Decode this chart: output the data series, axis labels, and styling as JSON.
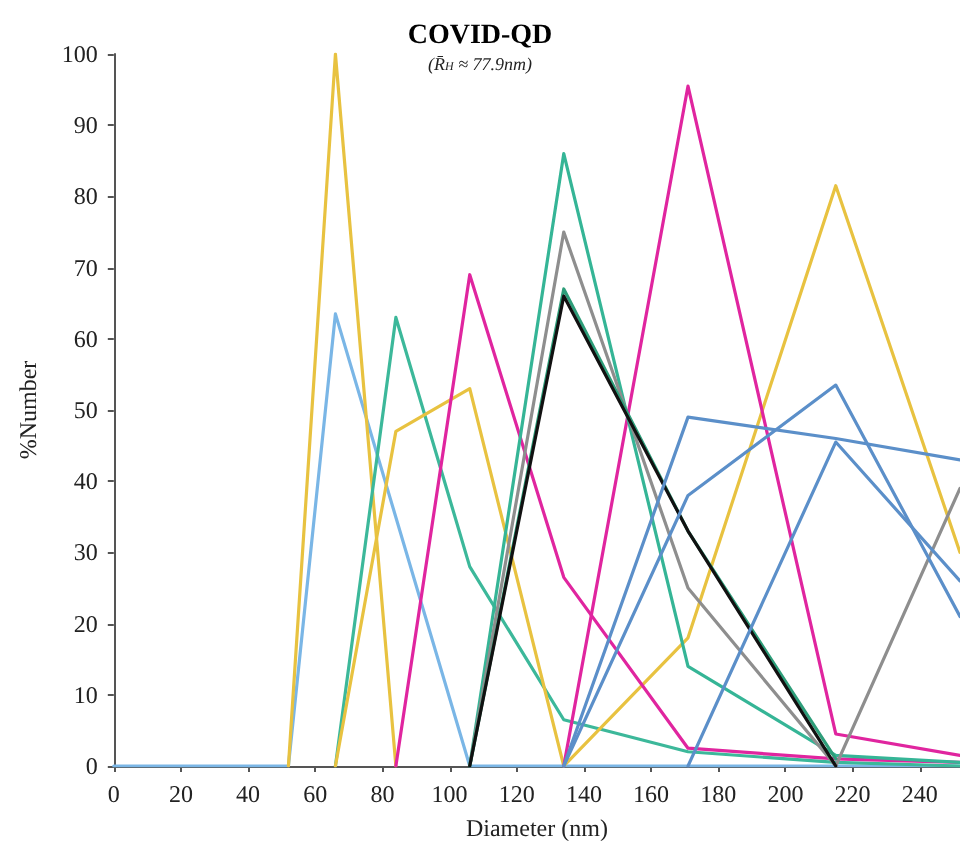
{
  "chart_data": {
    "type": "line",
    "title": "COVID-QD",
    "subtitle": "(R̄$_{H}$ ≈ 77.9nm)",
    "xlabel": "Diameter (nm)",
    "ylabel": "%Number",
    "series": [
      {
        "color": "#7ab6e6",
        "x": [
          0,
          52,
          66,
          106,
          134,
          171,
          215,
          252
        ],
        "values": [
          0,
          0,
          63.5,
          0,
          0,
          0,
          0,
          0
        ]
      },
      {
        "color": "#e8c240",
        "x": [
          52,
          66,
          84
        ],
        "values": [
          0,
          100,
          0
        ]
      },
      {
        "color": "#3cb89a",
        "x": [
          66,
          84,
          106,
          134,
          171,
          215,
          252
        ],
        "values": [
          0,
          63,
          28,
          6.5,
          2,
          0.5,
          0
        ]
      },
      {
        "color": "#e8c240",
        "x": [
          66,
          84,
          106,
          134,
          171,
          215,
          252
        ],
        "values": [
          0,
          47,
          53,
          0,
          18,
          81.5,
          30
        ]
      },
      {
        "color": "#e0259f",
        "x": [
          84,
          106,
          134,
          171,
          215,
          252
        ],
        "values": [
          0,
          69,
          26.5,
          2.5,
          1,
          0.5
        ]
      },
      {
        "color": "#e0259f",
        "x": [
          134,
          171,
          215,
          252
        ],
        "values": [
          0,
          95.5,
          4.5,
          1.5
        ]
      },
      {
        "color": "#35b596",
        "x": [
          106,
          134,
          171,
          215,
          252
        ],
        "values": [
          0,
          86,
          14,
          1.5,
          0.5
        ]
      },
      {
        "color": "#8e8e8e",
        "x": [
          106,
          134,
          171,
          215,
          252
        ],
        "values": [
          0,
          75,
          25,
          0,
          39
        ]
      },
      {
        "color": "#2e9e7a",
        "x": [
          106,
          134,
          171,
          215
        ],
        "values": [
          0,
          67,
          33,
          1
        ]
      },
      {
        "color": "#111111",
        "x": [
          106,
          134,
          171,
          215
        ],
        "values": [
          0,
          66,
          33,
          0
        ]
      },
      {
        "color": "#5b8fc9",
        "x": [
          134,
          171,
          215,
          252
        ],
        "values": [
          0,
          49,
          46,
          43
        ]
      },
      {
        "color": "#5b8fc9",
        "x": [
          134,
          171,
          215,
          252
        ],
        "values": [
          0,
          38,
          53.5,
          21
        ]
      },
      {
        "color": "#5b8fc9",
        "x": [
          171,
          215,
          252
        ],
        "values": [
          0,
          45.5,
          26
        ]
      }
    ],
    "xlim": [
      0,
      252
    ],
    "xticks": [
      0,
      20,
      40,
      60,
      80,
      100,
      120,
      140,
      160,
      180,
      200,
      220,
      240
    ],
    "ylim": [
      0,
      100
    ],
    "yticks": [
      0,
      10,
      20,
      30,
      40,
      50,
      60,
      70,
      80,
      90,
      100
    ],
    "grid": false,
    "marker": "none",
    "line_style": "solid"
  }
}
